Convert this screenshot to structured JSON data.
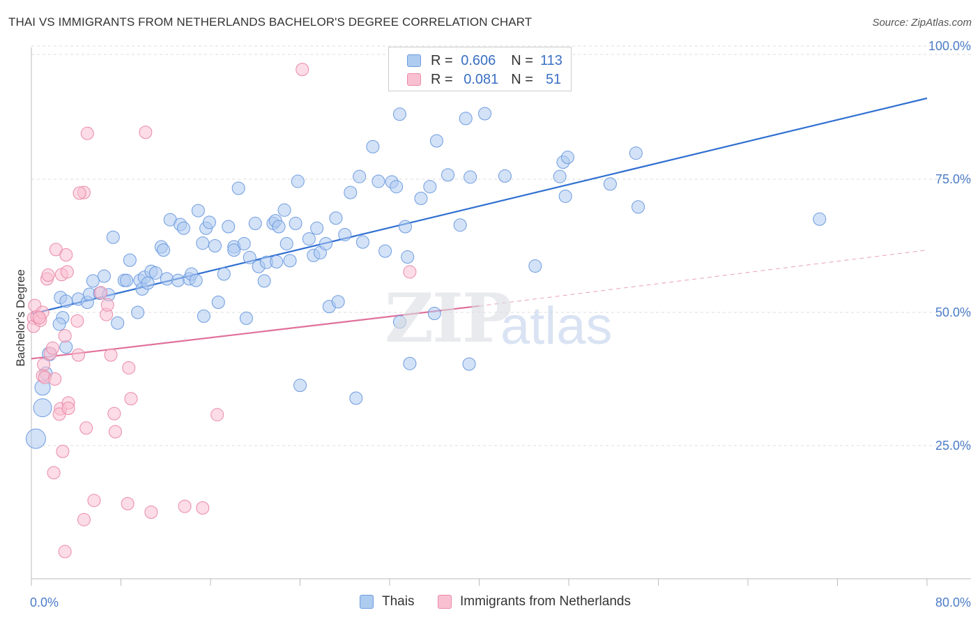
{
  "header": {
    "title": "THAI VS IMMIGRANTS FROM NETHERLANDS BACHELOR'S DEGREE CORRELATION CHART",
    "source": "Source: ZipAtlas.com"
  },
  "watermark": {
    "zip": "ZIP",
    "atlas": "atlas"
  },
  "legend": {
    "rows": [
      {
        "r_label": "R =",
        "r_value": "0.606",
        "n_label": "N =",
        "n_value": "113",
        "color": "#aecbf0",
        "border": "#6d9be0"
      },
      {
        "r_label": "R =",
        "r_value": "0.081",
        "n_label": "N =",
        "n_value": "51",
        "color": "#f9c0d2",
        "border": "#e98aa8"
      }
    ]
  },
  "bottom_legend": {
    "items": [
      {
        "label": "Thais",
        "color": "#aecbf0",
        "border": "#6d9be0"
      },
      {
        "label": "Immigrants from Netherlands",
        "color": "#f9c0d2",
        "border": "#e98aa8"
      }
    ]
  },
  "chart_data": {
    "type": "scatter",
    "title": "THAI VS IMMIGRANTS FROM NETHERLANDS BACHELOR'S DEGREE CORRELATION CHART",
    "xlabel": "",
    "ylabel": "Bachelor's Degree",
    "xlim": [
      0,
      80
    ],
    "ylim": [
      0,
      100
    ],
    "x_tick_labels": [
      "0.0%",
      "80.0%"
    ],
    "y_tick_labels": [
      "100.0%",
      "75.0%",
      "50.0%",
      "25.0%"
    ],
    "y_ticks": [
      100,
      75,
      50,
      25
    ],
    "grid": true,
    "legend_position": "top-center",
    "series": [
      {
        "name": "Thais",
        "color": "#6d9be0",
        "fill": "#aecbf0",
        "trend": {
          "x": [
            0,
            80
          ],
          "y": [
            49.7,
            90.2
          ],
          "style": "solid"
        },
        "points": [
          [
            0.4,
            26.3,
            14
          ],
          [
            1.0,
            32.1,
            13
          ],
          [
            1.0,
            35.9,
            11
          ],
          [
            1.6,
            42.2,
            10
          ],
          [
            1.3,
            38.6,
            9
          ],
          [
            2.6,
            52.8,
            9
          ],
          [
            3.1,
            52.1,
            9
          ],
          [
            2.8,
            49.0,
            9
          ],
          [
            2.5,
            47.8,
            9
          ],
          [
            3.1,
            43.5,
            9
          ],
          [
            4.2,
            52.5,
            9
          ],
          [
            5.0,
            51.9,
            9
          ],
          [
            5.2,
            53.4,
            9
          ],
          [
            5.5,
            55.9,
            9
          ],
          [
            6.5,
            56.8,
            9
          ],
          [
            6.1,
            53.6,
            9
          ],
          [
            6.9,
            53.3,
            9
          ],
          [
            7.7,
            48.0,
            9
          ],
          [
            7.3,
            64.1,
            9
          ],
          [
            8.3,
            56.0,
            9
          ],
          [
            8.8,
            59.8,
            9
          ],
          [
            8.5,
            56.0,
            9
          ],
          [
            9.5,
            50.0,
            9
          ],
          [
            9.7,
            56.0,
            9
          ],
          [
            9.9,
            54.4,
            9
          ],
          [
            10.1,
            56.6,
            9
          ],
          [
            10.4,
            55.5,
            9
          ],
          [
            10.7,
            57.7,
            9
          ],
          [
            11.1,
            57.4,
            9
          ],
          [
            11.6,
            62.3,
            9
          ],
          [
            11.8,
            61.7,
            9
          ],
          [
            12.1,
            56.3,
            9
          ],
          [
            12.4,
            67.4,
            9
          ],
          [
            13.1,
            56.0,
            9
          ],
          [
            13.3,
            66.5,
            9
          ],
          [
            13.6,
            65.8,
            9
          ],
          [
            14.1,
            56.3,
            9
          ],
          [
            14.3,
            57.2,
            9
          ],
          [
            14.7,
            56.0,
            9
          ],
          [
            14.9,
            69.1,
            9
          ],
          [
            15.4,
            49.3,
            9
          ],
          [
            15.6,
            65.8,
            9
          ],
          [
            15.9,
            66.9,
            9
          ],
          [
            16.4,
            62.5,
            9
          ],
          [
            16.7,
            51.9,
            9
          ],
          [
            17.2,
            57.2,
            9
          ],
          [
            17.6,
            66.1,
            9
          ],
          [
            18.1,
            62.3,
            9
          ],
          [
            18.1,
            61.7,
            9
          ],
          [
            18.5,
            73.3,
            9
          ],
          [
            19.0,
            62.9,
            9
          ],
          [
            19.2,
            48.9,
            9
          ],
          [
            19.5,
            60.3,
            9
          ],
          [
            20.0,
            66.7,
            9
          ],
          [
            20.3,
            58.6,
            9
          ],
          [
            20.8,
            55.9,
            9
          ],
          [
            21.0,
            59.4,
            9
          ],
          [
            21.6,
            66.7,
            9
          ],
          [
            21.8,
            67.2,
            9
          ],
          [
            22.1,
            66.1,
            9
          ],
          [
            22.6,
            69.2,
            9
          ],
          [
            22.8,
            62.9,
            9
          ],
          [
            23.1,
            59.7,
            9
          ],
          [
            23.6,
            66.7,
            9
          ],
          [
            23.8,
            74.6,
            9
          ],
          [
            24.8,
            63.8,
            9
          ],
          [
            25.2,
            60.7,
            9
          ],
          [
            25.5,
            65.8,
            9
          ],
          [
            25.8,
            61.2,
            9
          ],
          [
            26.3,
            62.9,
            9
          ],
          [
            27.2,
            67.7,
            9
          ],
          [
            26.6,
            51.1,
            9
          ],
          [
            27.4,
            52.0,
            9
          ],
          [
            24.0,
            36.3,
            9
          ],
          [
            28.0,
            64.6,
            9
          ],
          [
            28.5,
            72.5,
            9
          ],
          [
            29.3,
            75.5,
            9
          ],
          [
            29.6,
            63.2,
            9
          ],
          [
            30.5,
            81.1,
            9
          ],
          [
            31.0,
            74.6,
            9
          ],
          [
            31.6,
            61.5,
            9
          ],
          [
            32.2,
            74.5,
            9
          ],
          [
            32.6,
            73.6,
            9
          ],
          [
            32.9,
            87.2,
            9
          ],
          [
            33.4,
            66.1,
            9
          ],
          [
            33.6,
            60.4,
            9
          ],
          [
            33.8,
            40.4,
            9
          ],
          [
            32.9,
            48.2,
            9
          ],
          [
            34.8,
            71.4,
            9
          ],
          [
            35.6,
            73.6,
            9
          ],
          [
            36.0,
            49.8,
            9
          ],
          [
            36.2,
            82.2,
            9
          ],
          [
            37.2,
            75.8,
            9
          ],
          [
            38.3,
            66.4,
            9
          ],
          [
            38.8,
            86.4,
            9
          ],
          [
            39.2,
            75.4,
            9
          ],
          [
            39.1,
            40.3,
            9
          ],
          [
            40.5,
            87.3,
            9
          ],
          [
            42.3,
            75.6,
            9
          ],
          [
            45.0,
            58.7,
            9
          ],
          [
            47.2,
            75.5,
            9
          ],
          [
            47.5,
            78.2,
            9
          ],
          [
            47.9,
            79.1,
            9
          ],
          [
            47.7,
            71.8,
            9
          ],
          [
            51.7,
            74.1,
            9
          ],
          [
            54.0,
            79.9,
            9
          ],
          [
            54.2,
            69.8,
            9
          ],
          [
            70.4,
            67.5,
            9
          ],
          [
            29.0,
            33.9,
            9
          ],
          [
            21.9,
            59.5,
            9
          ],
          [
            15.3,
            63.0,
            9
          ]
        ]
      },
      {
        "name": "Immigrants from Netherlands",
        "color": "#e98aa8",
        "fill": "#f9c0d2",
        "trend": {
          "x": [
            0,
            40
          ],
          "y": [
            41.3,
            51.2
          ],
          "style": "solid",
          "dashed_extension": {
            "x": [
              40,
              80
            ],
            "y": [
              51.2,
              61.7
            ]
          }
        },
        "points": [
          [
            0.3,
            51.3,
            9
          ],
          [
            0.2,
            48.9,
            9
          ],
          [
            0.2,
            47.4,
            9
          ],
          [
            0.5,
            49.2,
            9
          ],
          [
            0.8,
            48.5,
            9
          ],
          [
            1.0,
            50.0,
            9
          ],
          [
            1.1,
            40.2,
            9
          ],
          [
            1.0,
            38.1,
            9
          ],
          [
            1.2,
            37.8,
            9
          ],
          [
            1.4,
            56.3,
            9
          ],
          [
            1.5,
            57.0,
            9
          ],
          [
            1.7,
            42.3,
            9
          ],
          [
            1.9,
            43.3,
            9
          ],
          [
            2.2,
            61.8,
            9
          ],
          [
            2.7,
            57.1,
            9
          ],
          [
            3.0,
            45.6,
            9
          ],
          [
            3.1,
            60.8,
            9
          ],
          [
            3.2,
            57.6,
            9
          ],
          [
            2.6,
            31.9,
            9
          ],
          [
            2.5,
            30.9,
            9
          ],
          [
            3.3,
            33.0,
            9
          ],
          [
            3.3,
            32.0,
            9
          ],
          [
            4.1,
            48.4,
            9
          ],
          [
            4.2,
            42.0,
            9
          ],
          [
            2.1,
            37.5,
            9
          ],
          [
            2.0,
            19.9,
            9
          ],
          [
            2.8,
            23.9,
            9
          ],
          [
            4.7,
            72.5,
            9
          ],
          [
            4.3,
            72.4,
            9
          ],
          [
            5.0,
            83.6,
            9
          ],
          [
            4.9,
            28.3,
            9
          ],
          [
            4.7,
            11.1,
            9
          ],
          [
            3.0,
            5.1,
            9
          ],
          [
            5.6,
            14.7,
            9
          ],
          [
            6.2,
            53.7,
            9
          ],
          [
            6.7,
            49.6,
            9
          ],
          [
            6.8,
            51.4,
            9
          ],
          [
            7.1,
            42.0,
            9
          ],
          [
            7.4,
            31.0,
            9
          ],
          [
            7.5,
            27.6,
            9
          ],
          [
            8.7,
            39.6,
            9
          ],
          [
            8.6,
            14.1,
            9
          ],
          [
            8.9,
            33.8,
            9
          ],
          [
            10.2,
            83.8,
            9
          ],
          [
            10.7,
            12.5,
            9
          ],
          [
            13.7,
            13.6,
            9
          ],
          [
            15.3,
            13.3,
            9
          ],
          [
            16.6,
            30.8,
            9
          ],
          [
            24.2,
            95.6,
            9
          ],
          [
            33.8,
            57.6,
            9
          ],
          [
            0.7,
            49.0,
            9
          ]
        ]
      }
    ]
  }
}
